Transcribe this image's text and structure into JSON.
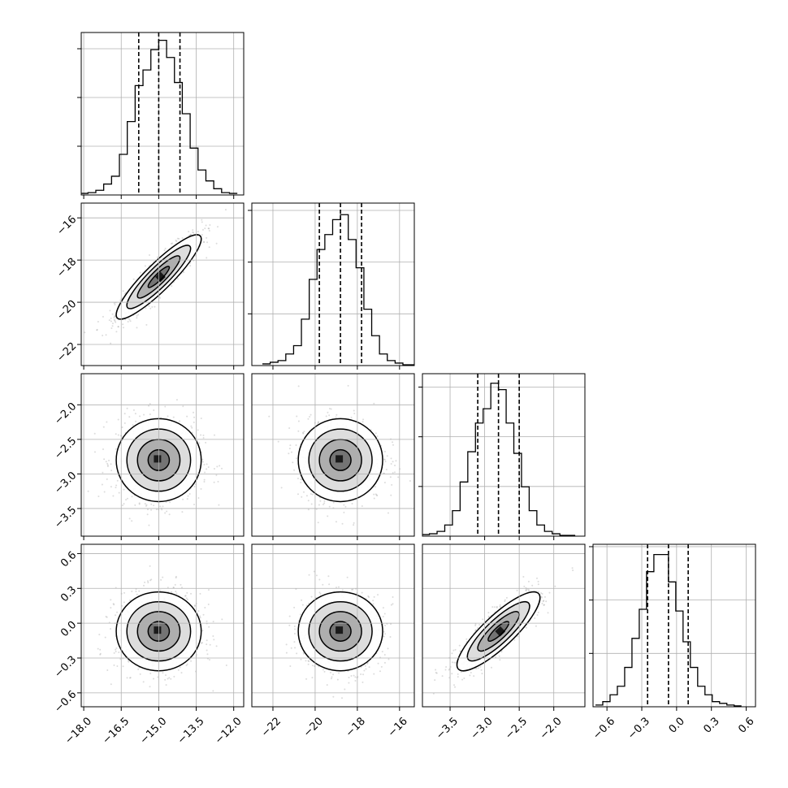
{
  "chart_data": {
    "type": "corner",
    "title": "",
    "grid": true,
    "parameters": [
      {
        "ticks": [
          "−18.0",
          "−16.5",
          "−15.0",
          "−13.5",
          "−12.0"
        ],
        "tick_values": [
          -18.0,
          -16.5,
          -15.0,
          -13.5,
          -12.0
        ],
        "range": [
          -18.1,
          -11.6
        ],
        "mean": -15.0,
        "sigma": 0.85,
        "quantiles": [
          -15.8,
          -15.0,
          -14.15
        ]
      },
      {
        "ticks": [
          "−22",
          "−20",
          "−18",
          "−16"
        ],
        "tick_values": [
          -22,
          -20,
          -18,
          -16
        ],
        "range": [
          -23.0,
          -15.3
        ],
        "mean": -18.8,
        "sigma": 1.0,
        "quantiles": [
          -19.8,
          -18.8,
          -17.8
        ]
      },
      {
        "ticks": [
          "−3.5",
          "−3.0",
          "−2.5",
          "−2.0"
        ],
        "tick_values": [
          -3.5,
          -3.0,
          -2.5,
          -2.0
        ],
        "range": [
          -3.9,
          -1.55
        ],
        "mean": -2.8,
        "sigma": 0.3,
        "quantiles": [
          -3.1,
          -2.8,
          -2.5
        ]
      },
      {
        "ticks": [
          "−0.6",
          "−0.3",
          "0.0",
          "0.3",
          "0.6"
        ],
        "tick_values": [
          -0.6,
          -0.3,
          0.0,
          0.3,
          0.6
        ],
        "range": [
          -0.72,
          0.68
        ],
        "mean": -0.07,
        "sigma": 0.17,
        "quantiles": [
          -0.25,
          -0.07,
          0.1
        ]
      }
    ],
    "histograms": [
      {
        "counts": [
          0.01,
          0.015,
          0.03,
          0.07,
          0.12,
          0.26,
          0.47,
          0.7,
          0.8,
          0.93,
          0.99,
          0.88,
          0.72,
          0.52,
          0.3,
          0.16,
          0.09,
          0.04,
          0.015,
          0.01
        ],
        "ylim": [
          0,
          1.04
        ]
      },
      {
        "counts": [
          0.01,
          0.02,
          0.03,
          0.07,
          0.12,
          0.28,
          0.52,
          0.7,
          0.79,
          0.88,
          0.91,
          0.76,
          0.59,
          0.34,
          0.18,
          0.07,
          0.03,
          0.015,
          0.005,
          0.005
        ],
        "ylim": [
          0,
          0.98
        ]
      },
      {
        "counts": [
          0.01,
          0.015,
          0.03,
          0.07,
          0.16,
          0.34,
          0.53,
          0.71,
          0.8,
          0.96,
          0.92,
          0.71,
          0.52,
          0.31,
          0.16,
          0.07,
          0.03,
          0.015,
          0.005,
          0.005
        ],
        "ylim": [
          0,
          1.02
        ]
      },
      {
        "counts": [
          0.01,
          0.03,
          0.07,
          0.12,
          0.23,
          0.4,
          0.57,
          0.79,
          0.89,
          0.89,
          0.73,
          0.56,
          0.38,
          0.23,
          0.12,
          0.07,
          0.03,
          0.02,
          0.01,
          0.005
        ],
        "ylim": [
          0,
          0.95
        ]
      }
    ],
    "correlations": {
      "1-0": 0.9,
      "2-0": 0.0,
      "2-1": 0.0,
      "3-0": 0.0,
      "3-1": 0.0,
      "3-2": 0.85
    },
    "contour_levels_sigma": [
      0.5,
      1.0,
      1.5,
      2.0
    ],
    "colors": {
      "line": "#000000",
      "grid": "#b0b0b0",
      "scatter": "#9a9a9a"
    }
  }
}
